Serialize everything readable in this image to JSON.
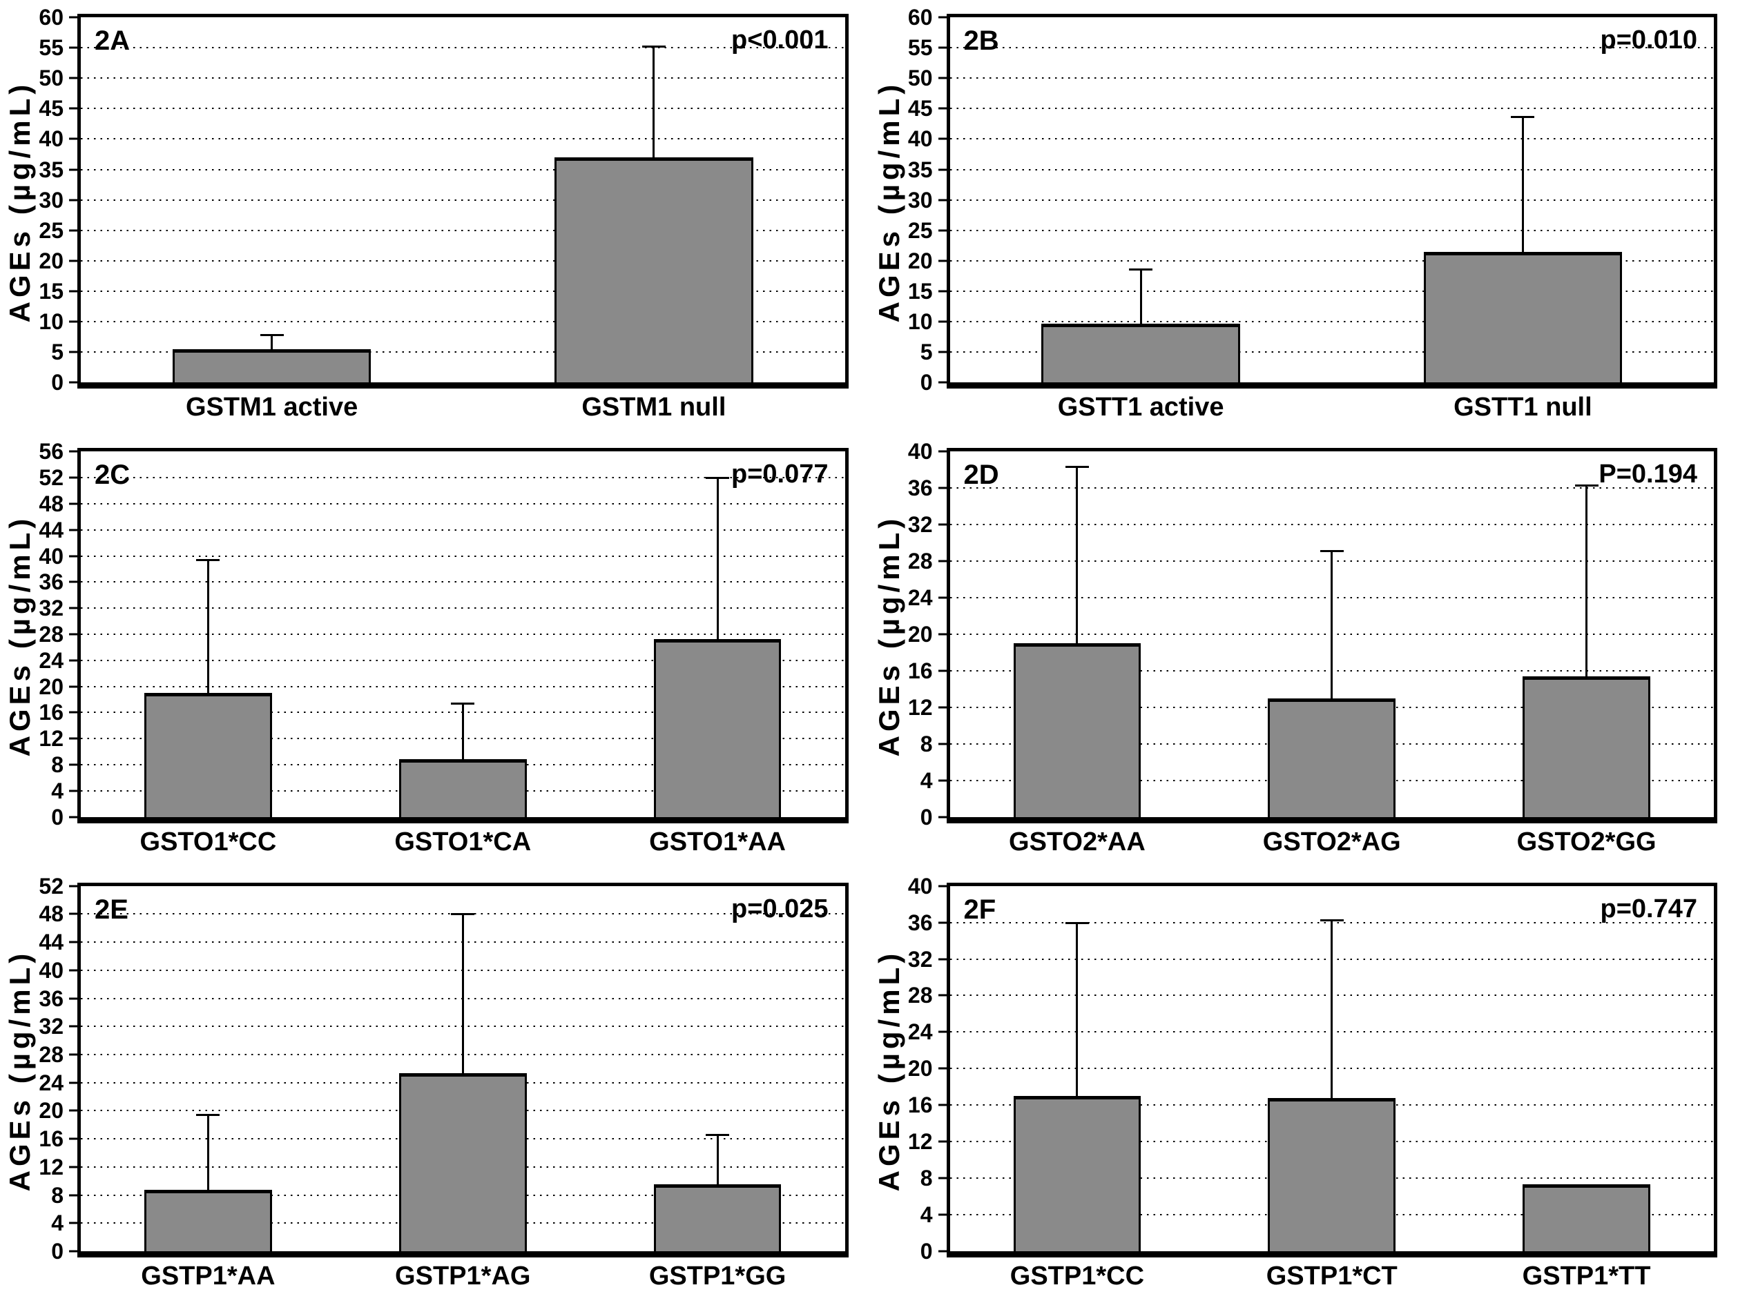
{
  "figure": {
    "y_axis_label": "AGEs (µg/mL)",
    "bar_color": "#8a8a8a",
    "grid_style": "dotted-horizontal"
  },
  "chart_data": [
    {
      "type": "bar",
      "panel_label": "2A",
      "p_value": "p<0.001",
      "ylabel": "AGEs (µg/mL)",
      "ylim": [
        0,
        60
      ],
      "ytick_step": 5,
      "yticks": [
        0,
        5,
        10,
        15,
        20,
        25,
        30,
        35,
        40,
        45,
        50,
        55,
        60
      ],
      "categories": [
        "GSTM1 active",
        "GSTM1 null"
      ],
      "values": [
        5.5,
        37
      ],
      "error_top": [
        7.6,
        55
      ]
    },
    {
      "type": "bar",
      "panel_label": "2B",
      "p_value": "p=0.010",
      "ylabel": "AGEs (µg/mL)",
      "ylim": [
        0,
        60
      ],
      "ytick_step": 5,
      "yticks": [
        0,
        5,
        10,
        15,
        20,
        25,
        30,
        35,
        40,
        45,
        50,
        55,
        60
      ],
      "categories": [
        "GSTT1 active",
        "GSTT1 null"
      ],
      "values": [
        9.7,
        21.5
      ],
      "error_top": [
        18.4,
        43.5
      ]
    },
    {
      "type": "bar",
      "panel_label": "2C",
      "p_value": "p=0.077",
      "ylabel": "AGEs (µg/mL)",
      "ylim": [
        0,
        56
      ],
      "ytick_step": 4,
      "yticks": [
        0,
        4,
        8,
        12,
        16,
        20,
        24,
        28,
        32,
        36,
        40,
        44,
        48,
        52,
        56
      ],
      "categories": [
        "GSTO1*CC",
        "GSTO1*CA",
        "GSTO1*AA"
      ],
      "values": [
        19,
        8.8,
        27.3
      ],
      "error_top": [
        39.2,
        17.2,
        51.8
      ]
    },
    {
      "type": "bar",
      "panel_label": "2D",
      "p_value": "P=0.194",
      "ylabel": "AGEs (µg/mL)",
      "ylim": [
        0,
        40
      ],
      "ytick_step": 4,
      "yticks": [
        0,
        4,
        8,
        12,
        16,
        20,
        24,
        28,
        32,
        36,
        40
      ],
      "categories": [
        "GSTO2*AA",
        "GSTO2*AG",
        "GSTO2*GG"
      ],
      "values": [
        19,
        13,
        15.4
      ],
      "error_top": [
        38.2,
        29,
        36.2
      ]
    },
    {
      "type": "bar",
      "panel_label": "2E",
      "p_value": "p=0.025",
      "ylabel": "AGEs (µg/mL)",
      "ylim": [
        0,
        52
      ],
      "ytick_step": 4,
      "yticks": [
        0,
        4,
        8,
        12,
        16,
        20,
        24,
        28,
        32,
        36,
        40,
        44,
        48,
        52
      ],
      "categories": [
        "GSTP1*AA",
        "GSTP1*AG",
        "GSTP1*GG"
      ],
      "values": [
        8.7,
        25.3,
        9.5
      ],
      "error_top": [
        19.3,
        47.8,
        16.4
      ]
    },
    {
      "type": "bar",
      "panel_label": "2F",
      "p_value": "p=0.747",
      "ylabel": "AGEs (µg/mL)",
      "ylim": [
        0,
        40
      ],
      "ytick_step": 4,
      "yticks": [
        0,
        4,
        8,
        12,
        16,
        20,
        24,
        28,
        32,
        36,
        40
      ],
      "categories": [
        "GSTP1*CC",
        "GSTP1*CT",
        "GSTP1*TT"
      ],
      "values": [
        17,
        16.8,
        7.3
      ],
      "error_top": [
        35.8,
        36.1,
        null
      ]
    }
  ]
}
